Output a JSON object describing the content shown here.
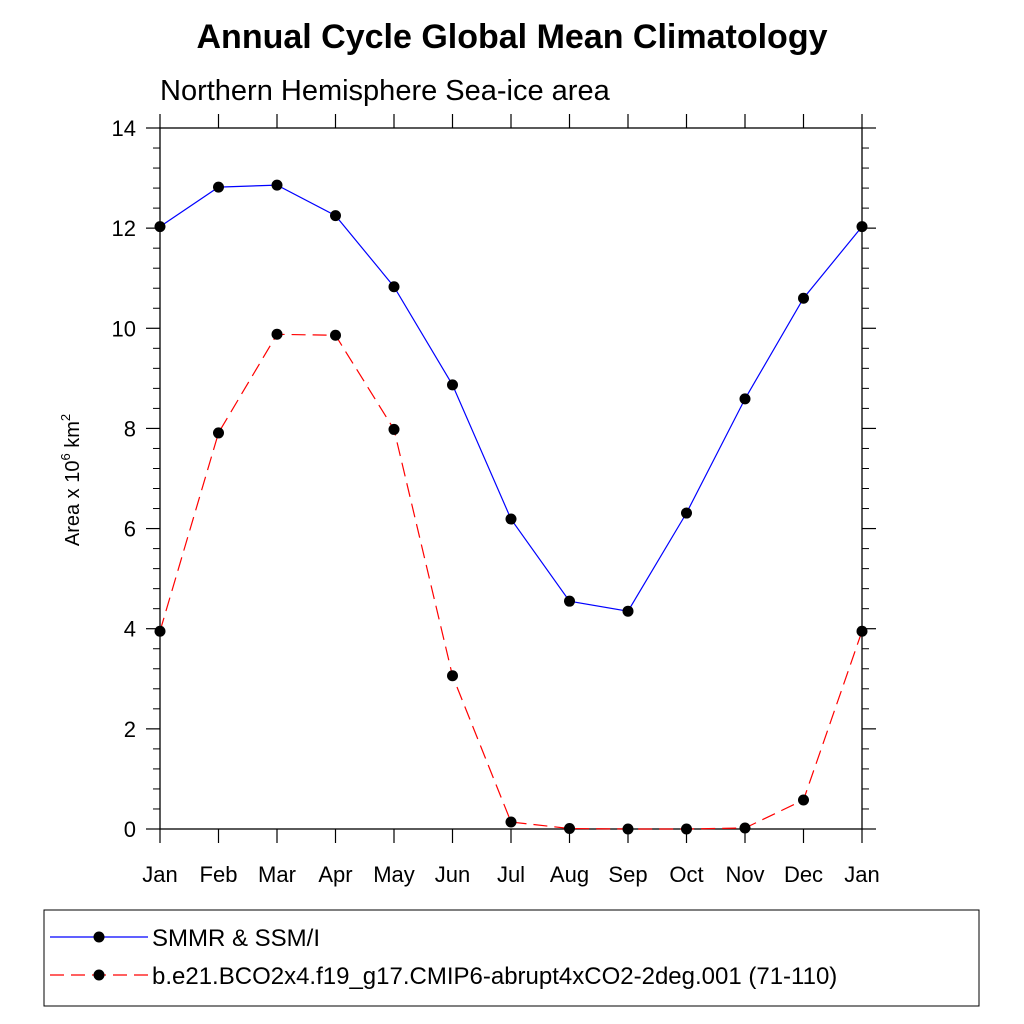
{
  "chart_data": {
    "type": "line",
    "title": "Annual Cycle Global Mean Climatology",
    "subtitle": "Northern Hemisphere Sea-ice area",
    "xlabel": "",
    "ylabel": {
      "base": "Area x 10",
      "exponent": "6",
      "unit": " km",
      "unit_exponent": "2"
    },
    "categories": [
      "Jan",
      "Feb",
      "Mar",
      "Apr",
      "May",
      "Jun",
      "Jul",
      "Aug",
      "Sep",
      "Oct",
      "Nov",
      "Dec",
      "Jan"
    ],
    "yticks": [
      0,
      2,
      4,
      6,
      8,
      10,
      12,
      14
    ],
    "ylim": [
      0,
      14
    ],
    "grid": false,
    "legend_position": "bottom",
    "series": [
      {
        "name": "SMMR & SSM/I",
        "color": "#0000ff",
        "dash": "solid",
        "values": [
          12.03,
          12.82,
          12.86,
          12.25,
          10.83,
          8.87,
          6.19,
          4.55,
          4.35,
          6.31,
          8.59,
          10.6,
          12.03
        ]
      },
      {
        "name": "b.e21.BCO2x4.f19_g17.CMIP6-abrupt4xCO2-2deg.001 (71-110)",
        "color": "#ff0000",
        "dash": "dashed",
        "values": [
          3.95,
          7.91,
          9.88,
          9.86,
          7.98,
          3.06,
          0.14,
          0.01,
          0.0,
          0.0,
          0.02,
          0.58,
          3.95
        ]
      }
    ]
  }
}
